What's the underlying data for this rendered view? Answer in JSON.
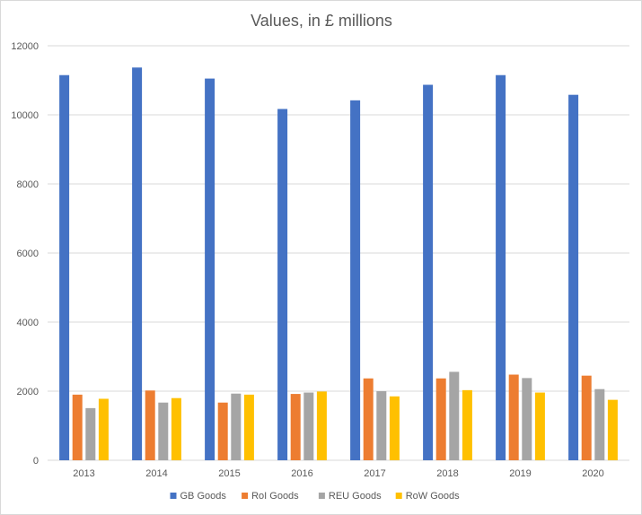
{
  "chart_data": {
    "type": "bar",
    "title": "Values, in £ millions",
    "xlabel": "",
    "ylabel": "",
    "categories": [
      "2013",
      "2014",
      "2015",
      "2016",
      "2017",
      "2018",
      "2019",
      "2020"
    ],
    "ylim": [
      0,
      12000
    ],
    "yticks": [
      "0",
      "2000",
      "4000",
      "6000",
      "8000",
      "10000",
      "12000"
    ],
    "grid": true,
    "legend_position": "bottom",
    "series": [
      {
        "name": "GB Goods",
        "color": "#4472C4",
        "values": [
          11150,
          11370,
          11050,
          10170,
          10420,
          10870,
          11150,
          10580
        ]
      },
      {
        "name": "RoI Goods",
        "color": "#ED7D31",
        "values": [
          1900,
          2020,
          1670,
          1920,
          2370,
          2370,
          2480,
          2450
        ]
      },
      {
        "name": "REU Goods",
        "color": "#A5A5A5",
        "values": [
          1510,
          1670,
          1930,
          1960,
          2000,
          2560,
          2380,
          2060
        ]
      },
      {
        "name": "RoW Goods",
        "color": "#FFC000",
        "values": [
          1780,
          1800,
          1900,
          1990,
          1850,
          2030,
          1960,
          1750
        ]
      }
    ]
  }
}
